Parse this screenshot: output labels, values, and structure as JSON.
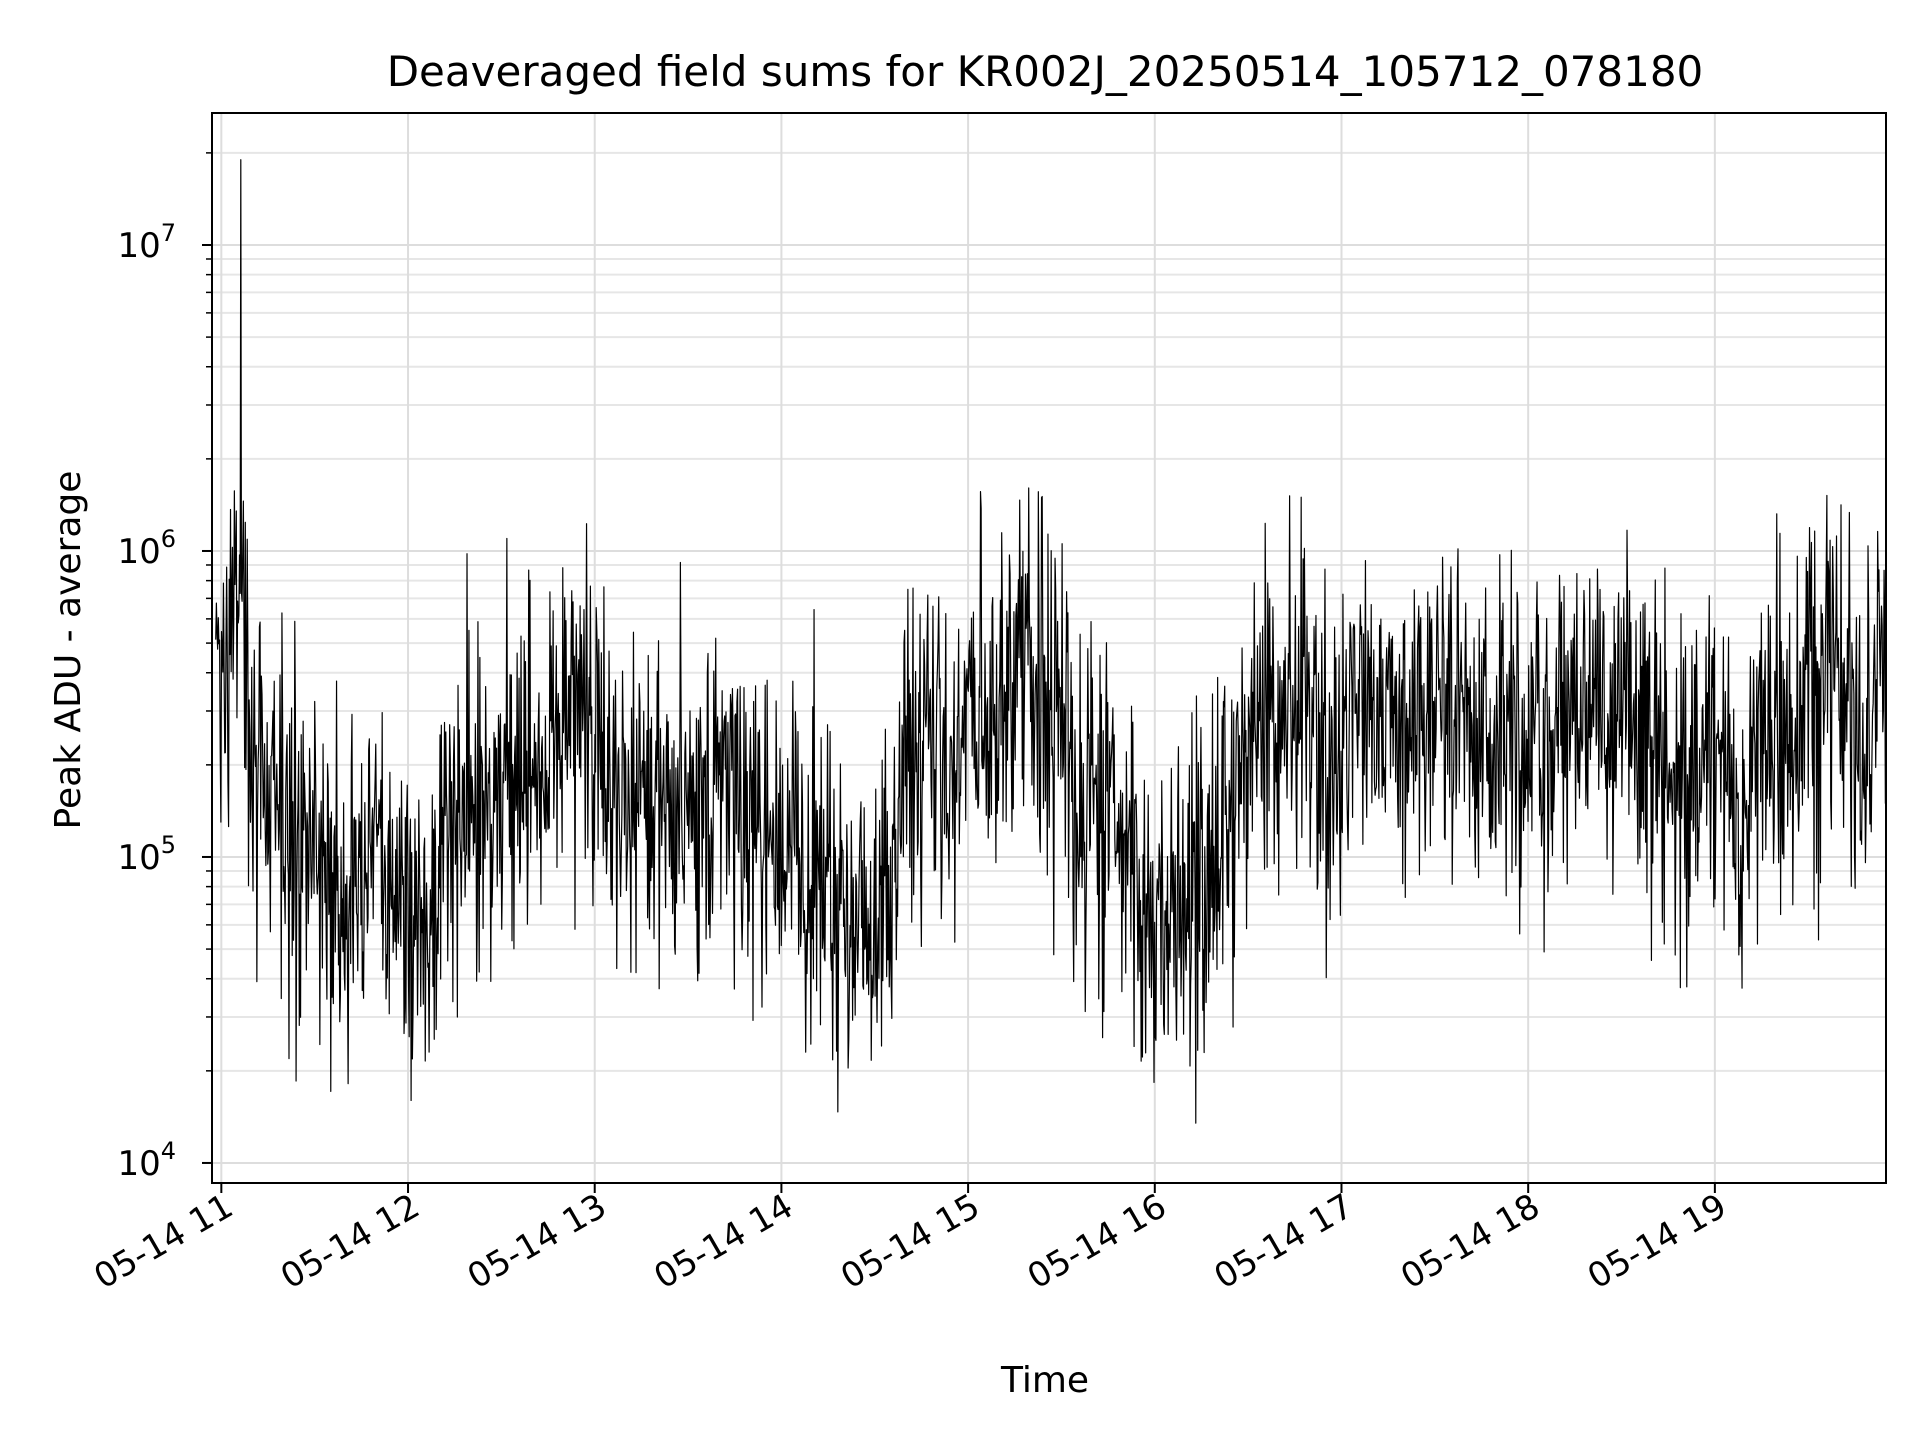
{
  "chart_data": {
    "type": "line",
    "title": "Deaveraged field sums for KR002J_20250514_105712_078180",
    "xlabel": "Time",
    "ylabel": "Peak ADU - average",
    "yscale": "log",
    "ylim": [
      8600,
      27000000
    ],
    "xlim": [
      "05-14 10:57",
      "05-14 19:55"
    ],
    "x_ticks": [
      "05-14 11",
      "05-14 12",
      "05-14 13",
      "05-14 14",
      "05-14 15",
      "05-14 16",
      "05-14 17",
      "05-14 18",
      "05-14 19"
    ],
    "y_ticks": [
      {
        "base": "10",
        "exp": "4",
        "value": 10000
      },
      {
        "base": "10",
        "exp": "5",
        "value": 100000
      },
      {
        "base": "10",
        "exp": "6",
        "value": 1000000
      },
      {
        "base": "10",
        "exp": "7",
        "value": 10000000
      }
    ],
    "grid": true,
    "line_color": "#000000",
    "series": [
      {
        "x_unit": "hour of 05-14",
        "x": [
          10.97,
          11.0,
          11.05,
          11.1,
          11.15,
          11.2,
          11.3,
          11.4,
          11.5,
          11.6,
          11.7,
          11.8,
          11.9,
          12.0,
          12.05,
          12.1,
          12.2,
          12.3,
          12.4,
          12.5,
          12.6,
          12.7,
          12.8,
          12.9,
          13.0,
          13.1,
          13.2,
          13.3,
          13.4,
          13.5,
          13.6,
          13.7,
          13.8,
          13.9,
          14.0,
          14.1,
          14.2,
          14.3,
          14.4,
          14.5,
          14.6,
          14.7,
          14.8,
          14.9,
          15.0,
          15.1,
          15.2,
          15.3,
          15.4,
          15.5,
          15.6,
          15.7,
          15.8,
          15.9,
          16.0,
          16.1,
          16.2,
          16.3,
          16.4,
          16.5,
          16.6,
          16.7,
          16.8,
          16.9,
          17.0,
          17.1,
          17.2,
          17.3,
          17.4,
          17.5,
          17.6,
          17.7,
          17.8,
          17.9,
          18.0,
          18.1,
          18.2,
          18.3,
          18.4,
          18.5,
          18.6,
          18.7,
          18.8,
          18.9,
          19.0,
          19.1,
          19.2,
          19.3,
          19.4,
          19.5,
          19.6,
          19.7,
          19.8,
          19.9
        ],
        "y": [
          300000,
          350000,
          500000,
          800000,
          300000,
          200000,
          150000,
          120000,
          90000,
          70000,
          80000,
          110000,
          90000,
          60000,
          50000,
          70000,
          120000,
          150000,
          160000,
          170000,
          180000,
          200000,
          300000,
          400000,
          250000,
          200000,
          180000,
          160000,
          150000,
          140000,
          160000,
          180000,
          150000,
          120000,
          100000,
          90000,
          80000,
          70000,
          60000,
          70000,
          80000,
          200000,
          250000,
          200000,
          300000,
          350000,
          400000,
          450000,
          350000,
          250000,
          150000,
          120000,
          100000,
          80000,
          70000,
          60000,
          70000,
          90000,
          150000,
          250000,
          400000,
          350000,
          300000,
          200000,
          250000,
          400000,
          350000,
          300000,
          250000,
          300000,
          350000,
          300000,
          250000,
          300000,
          250000,
          200000,
          300000,
          350000,
          400000,
          300000,
          250000,
          200000,
          150000,
          180000,
          200000,
          160000,
          200000,
          250000,
          300000,
          400000,
          500000,
          300000,
          250000,
          450000
        ]
      }
    ]
  }
}
